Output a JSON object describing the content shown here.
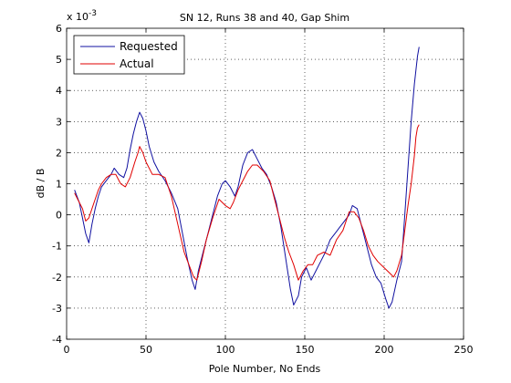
{
  "chart_data": {
    "type": "line",
    "title": "SN 12, Runs 38 and 40, Gap Shim",
    "xlabel": "Pole Number, No Ends",
    "ylabel": "dB / B",
    "exponent_label": "x 10",
    "exponent_power": "-3",
    "xlim": [
      0,
      250
    ],
    "ylim": [
      -4,
      6
    ],
    "x_ticks": [
      0,
      50,
      100,
      150,
      200,
      250
    ],
    "y_ticks": [
      -4,
      -3,
      -2,
      -1,
      0,
      1,
      2,
      3,
      4,
      5,
      6
    ],
    "x_tick_labels": [
      "0",
      "50",
      "100",
      "150",
      "200",
      "250"
    ],
    "y_tick_labels": [
      "-4",
      "-3",
      "-2",
      "-1",
      "0",
      "1",
      "2",
      "3",
      "4",
      "5",
      "6"
    ],
    "grid": true,
    "legend_position": "top-left",
    "series": [
      {
        "name": "Requested",
        "color": "#1010a0",
        "points": [
          [
            5,
            0.8
          ],
          [
            8,
            0.4
          ],
          [
            10,
            -0.1
          ],
          [
            12,
            -0.6
          ],
          [
            14,
            -0.9
          ],
          [
            16,
            -0.3
          ],
          [
            18,
            0.2
          ],
          [
            20,
            0.6
          ],
          [
            22,
            0.9
          ],
          [
            25,
            1.1
          ],
          [
            28,
            1.3
          ],
          [
            30,
            1.5
          ],
          [
            33,
            1.3
          ],
          [
            36,
            1.2
          ],
          [
            38,
            1.5
          ],
          [
            40,
            2.1
          ],
          [
            42,
            2.6
          ],
          [
            44,
            3.0
          ],
          [
            46,
            3.3
          ],
          [
            48,
            3.1
          ],
          [
            50,
            2.7
          ],
          [
            52,
            2.2
          ],
          [
            55,
            1.7
          ],
          [
            58,
            1.4
          ],
          [
            62,
            1.1
          ],
          [
            66,
            0.7
          ],
          [
            70,
            0.2
          ],
          [
            73,
            -0.6
          ],
          [
            76,
            -1.4
          ],
          [
            79,
            -2.1
          ],
          [
            81,
            -2.4
          ],
          [
            83,
            -1.8
          ],
          [
            86,
            -1.2
          ],
          [
            89,
            -0.6
          ],
          [
            92,
            0.0
          ],
          [
            95,
            0.6
          ],
          [
            98,
            1.0
          ],
          [
            100,
            1.1
          ],
          [
            103,
            0.9
          ],
          [
            106,
            0.6
          ],
          [
            108,
            0.9
          ],
          [
            111,
            1.6
          ],
          [
            114,
            2.0
          ],
          [
            117,
            2.1
          ],
          [
            120,
            1.8
          ],
          [
            123,
            1.5
          ],
          [
            126,
            1.3
          ],
          [
            129,
            0.9
          ],
          [
            132,
            0.4
          ],
          [
            135,
            -0.4
          ],
          [
            138,
            -1.4
          ],
          [
            141,
            -2.4
          ],
          [
            143,
            -2.9
          ],
          [
            146,
            -2.6
          ],
          [
            148,
            -2.0
          ],
          [
            151,
            -1.7
          ],
          [
            154,
            -2.1
          ],
          [
            157,
            -1.8
          ],
          [
            160,
            -1.5
          ],
          [
            163,
            -1.2
          ],
          [
            166,
            -0.8
          ],
          [
            169,
            -0.6
          ],
          [
            172,
            -0.4
          ],
          [
            175,
            -0.2
          ],
          [
            178,
            0.0
          ],
          [
            180,
            0.3
          ],
          [
            183,
            0.2
          ],
          [
            186,
            -0.4
          ],
          [
            189,
            -1.0
          ],
          [
            192,
            -1.6
          ],
          [
            195,
            -2.0
          ],
          [
            198,
            -2.2
          ],
          [
            201,
            -2.7
          ],
          [
            203,
            -3.0
          ],
          [
            205,
            -2.8
          ],
          [
            208,
            -2.1
          ],
          [
            211,
            -1.5
          ],
          [
            213,
            0.0
          ],
          [
            215,
            1.5
          ],
          [
            217,
            3.0
          ],
          [
            219,
            4.2
          ],
          [
            221,
            5.1
          ],
          [
            222,
            5.4
          ]
        ]
      },
      {
        "name": "Actual",
        "color": "#e00000",
        "points": [
          [
            5,
            0.7
          ],
          [
            8,
            0.4
          ],
          [
            10,
            0.2
          ],
          [
            12,
            -0.2
          ],
          [
            14,
            -0.1
          ],
          [
            16,
            0.2
          ],
          [
            18,
            0.5
          ],
          [
            20,
            0.8
          ],
          [
            22,
            1.0
          ],
          [
            25,
            1.2
          ],
          [
            28,
            1.3
          ],
          [
            31,
            1.3
          ],
          [
            34,
            1.0
          ],
          [
            37,
            0.9
          ],
          [
            40,
            1.2
          ],
          [
            43,
            1.7
          ],
          [
            45,
            2.0
          ],
          [
            46,
            2.2
          ],
          [
            48,
            2.0
          ],
          [
            50,
            1.7
          ],
          [
            54,
            1.3
          ],
          [
            58,
            1.3
          ],
          [
            62,
            1.2
          ],
          [
            66,
            0.6
          ],
          [
            70,
            -0.3
          ],
          [
            74,
            -1.2
          ],
          [
            77,
            -1.6
          ],
          [
            80,
            -2.0
          ],
          [
            82,
            -2.1
          ],
          [
            85,
            -1.5
          ],
          [
            88,
            -0.8
          ],
          [
            92,
            -0.1
          ],
          [
            96,
            0.5
          ],
          [
            100,
            0.3
          ],
          [
            103,
            0.2
          ],
          [
            105,
            0.4
          ],
          [
            108,
            0.8
          ],
          [
            111,
            1.1
          ],
          [
            114,
            1.4
          ],
          [
            117,
            1.6
          ],
          [
            120,
            1.6
          ],
          [
            124,
            1.4
          ],
          [
            128,
            1.1
          ],
          [
            131,
            0.5
          ],
          [
            134,
            -0.1
          ],
          [
            137,
            -0.7
          ],
          [
            140,
            -1.2
          ],
          [
            143,
            -1.6
          ],
          [
            146,
            -2.1
          ],
          [
            149,
            -1.8
          ],
          [
            152,
            -1.6
          ],
          [
            155,
            -1.6
          ],
          [
            158,
            -1.3
          ],
          [
            162,
            -1.2
          ],
          [
            166,
            -1.3
          ],
          [
            170,
            -0.8
          ],
          [
            174,
            -0.5
          ],
          [
            178,
            0.1
          ],
          [
            181,
            0.1
          ],
          [
            184,
            -0.1
          ],
          [
            187,
            -0.5
          ],
          [
            190,
            -1.0
          ],
          [
            193,
            -1.3
          ],
          [
            196,
            -1.5
          ],
          [
            200,
            -1.7
          ],
          [
            204,
            -1.9
          ],
          [
            206,
            -2.0
          ],
          [
            208,
            -1.8
          ],
          [
            211,
            -1.3
          ],
          [
            213,
            -0.5
          ],
          [
            215,
            0.3
          ],
          [
            217,
            1.0
          ],
          [
            219,
            1.9
          ],
          [
            220,
            2.5
          ],
          [
            221,
            2.8
          ],
          [
            222,
            2.9
          ]
        ]
      }
    ]
  }
}
